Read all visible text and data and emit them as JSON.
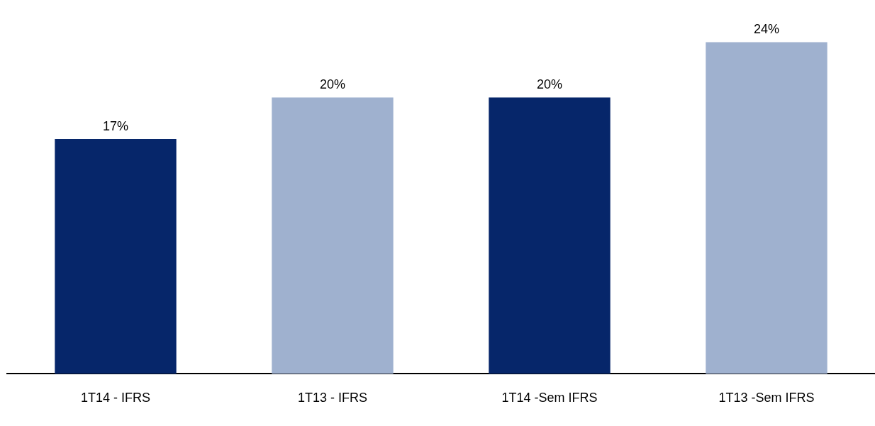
{
  "chart_data": {
    "type": "bar",
    "categories": [
      "1T14 - IFRS",
      "1T13 - IFRS",
      "1T14 -Sem IFRS",
      "1T13 -Sem IFRS"
    ],
    "values": [
      17,
      20,
      20,
      24
    ],
    "colors": [
      "#06266a",
      "#9fb1cf",
      "#06266a",
      "#9fb1cf"
    ],
    "value_labels": [
      "17%",
      "20%",
      "20%",
      "24%"
    ],
    "tick_labels": "x",
    "grid": false,
    "legend": false
  }
}
